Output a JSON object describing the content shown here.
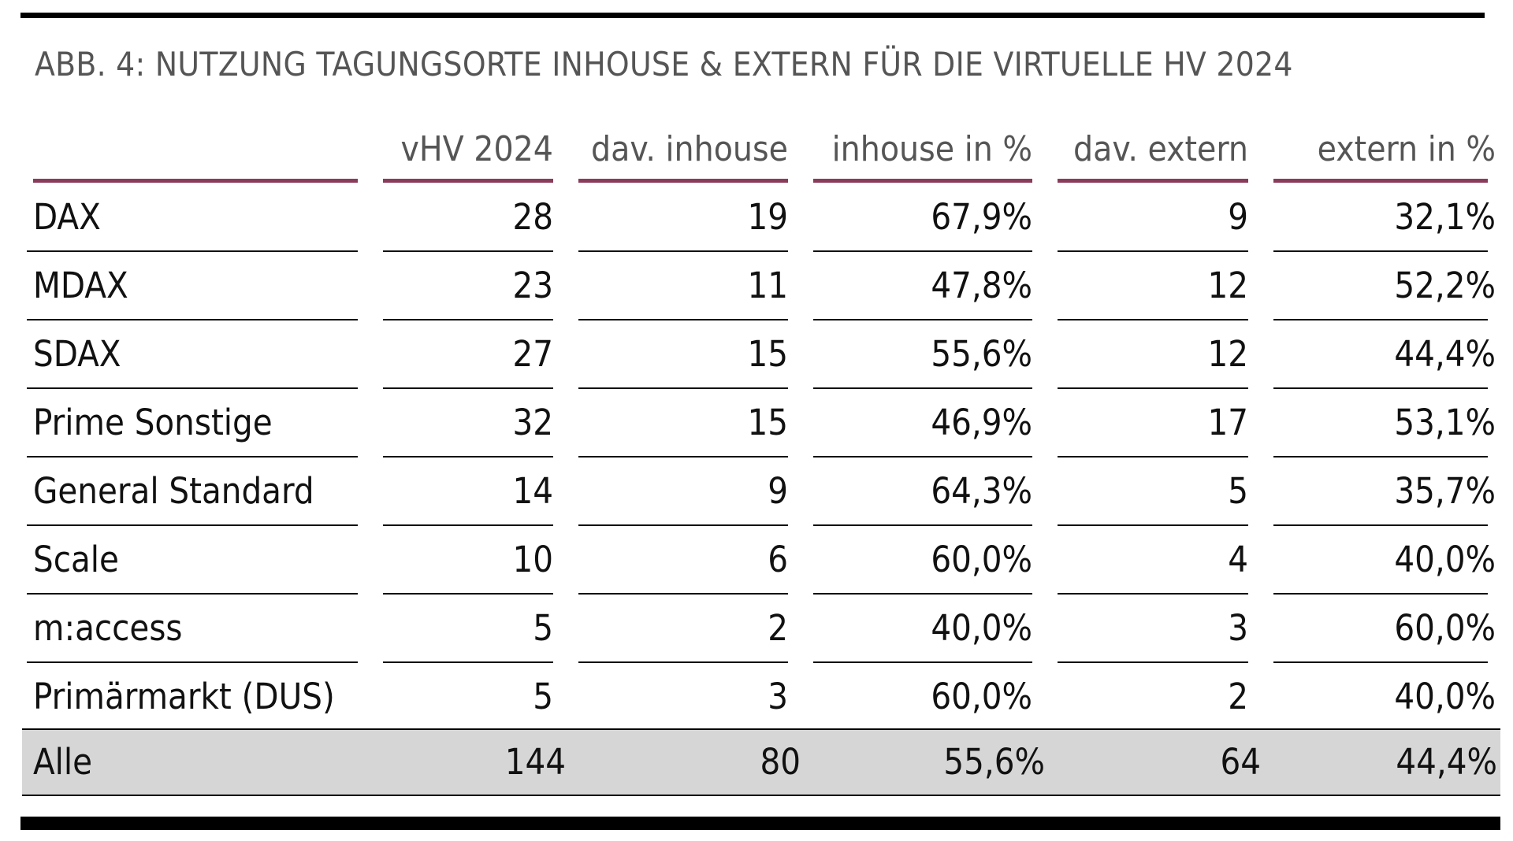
{
  "chart_data": {
    "type": "table",
    "title": "ABB. 4: NUTZUNG TAGUNGSORTE INHOUSE & EXTERN FÜR DIE VIRTUELLE HV 2024",
    "columns": [
      "",
      "vHV 2024",
      "dav. inhouse",
      "inhouse in %",
      "dav. extern",
      "extern in %"
    ],
    "rows": [
      {
        "label": "DAX",
        "vhv": "28",
        "inhouse": "19",
        "inhouse_pct": "67,9%",
        "extern": "9",
        "extern_pct": "32,1%"
      },
      {
        "label": "MDAX",
        "vhv": "23",
        "inhouse": "11",
        "inhouse_pct": "47,8%",
        "extern": "12",
        "extern_pct": "52,2%"
      },
      {
        "label": "SDAX",
        "vhv": "27",
        "inhouse": "15",
        "inhouse_pct": "55,6%",
        "extern": "12",
        "extern_pct": "44,4%"
      },
      {
        "label": "Prime Sonstige",
        "vhv": "32",
        "inhouse": "15",
        "inhouse_pct": "46,9%",
        "extern": "17",
        "extern_pct": "53,1%"
      },
      {
        "label": "General Standard",
        "vhv": "14",
        "inhouse": "9",
        "inhouse_pct": "64,3%",
        "extern": "5",
        "extern_pct": "35,7%"
      },
      {
        "label": "Scale",
        "vhv": "10",
        "inhouse": "6",
        "inhouse_pct": "60,0%",
        "extern": "4",
        "extern_pct": "40,0%"
      },
      {
        "label": "m:access",
        "vhv": "5",
        "inhouse": "2",
        "inhouse_pct": "40,0%",
        "extern": "3",
        "extern_pct": "60,0%"
      },
      {
        "label": "Primärmarkt (DUS)",
        "vhv": "5",
        "inhouse": "3",
        "inhouse_pct": "60,0%",
        "extern": "2",
        "extern_pct": "40,0%"
      }
    ],
    "total": {
      "label": "Alle",
      "vhv": "144",
      "inhouse": "80",
      "inhouse_pct": "55,6%",
      "extern": "64",
      "extern_pct": "44,4%"
    },
    "colors": {
      "accent": "#8a3b5a",
      "total_background": "#d6d6d6",
      "header_text": "#555555"
    }
  }
}
